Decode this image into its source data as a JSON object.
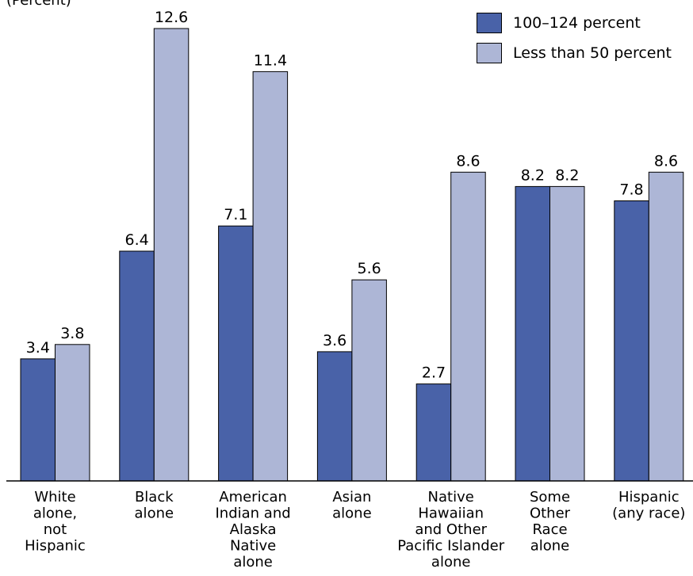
{
  "chart_data": {
    "type": "bar",
    "ylabel": "(Percent)",
    "ylim": [
      0,
      13.5
    ],
    "categories": [
      [
        "White",
        "alone,",
        "not",
        "Hispanic"
      ],
      [
        "Black",
        "alone"
      ],
      [
        "American",
        "Indian and",
        "Alaska",
        "Native",
        "alone"
      ],
      [
        "Asian",
        "alone"
      ],
      [
        "Native",
        "Hawaiian",
        "and Other",
        "Pacific Islander",
        "alone"
      ],
      [
        "Some",
        "Other",
        "Race",
        "alone"
      ],
      [
        "Hispanic",
        "(any race)"
      ]
    ],
    "series": [
      {
        "name": "100–124 percent",
        "color": "#4962a8",
        "values": [
          3.4,
          6.4,
          7.1,
          3.6,
          2.7,
          8.2,
          7.8
        ]
      },
      {
        "name": "Less than 50 percent",
        "color": "#adb6d6",
        "values": [
          3.8,
          12.6,
          11.4,
          5.6,
          8.6,
          8.2,
          8.6
        ]
      }
    ],
    "data_labels": [
      [
        "3.4",
        "6.4",
        "7.1",
        "3.6",
        "2.7",
        "8.2",
        "7.8"
      ],
      [
        "3.8",
        "12.6",
        "11.4",
        "5.6",
        "8.6",
        "8.2",
        "8.6"
      ]
    ],
    "legend_position": "top-right",
    "grid": false
  }
}
